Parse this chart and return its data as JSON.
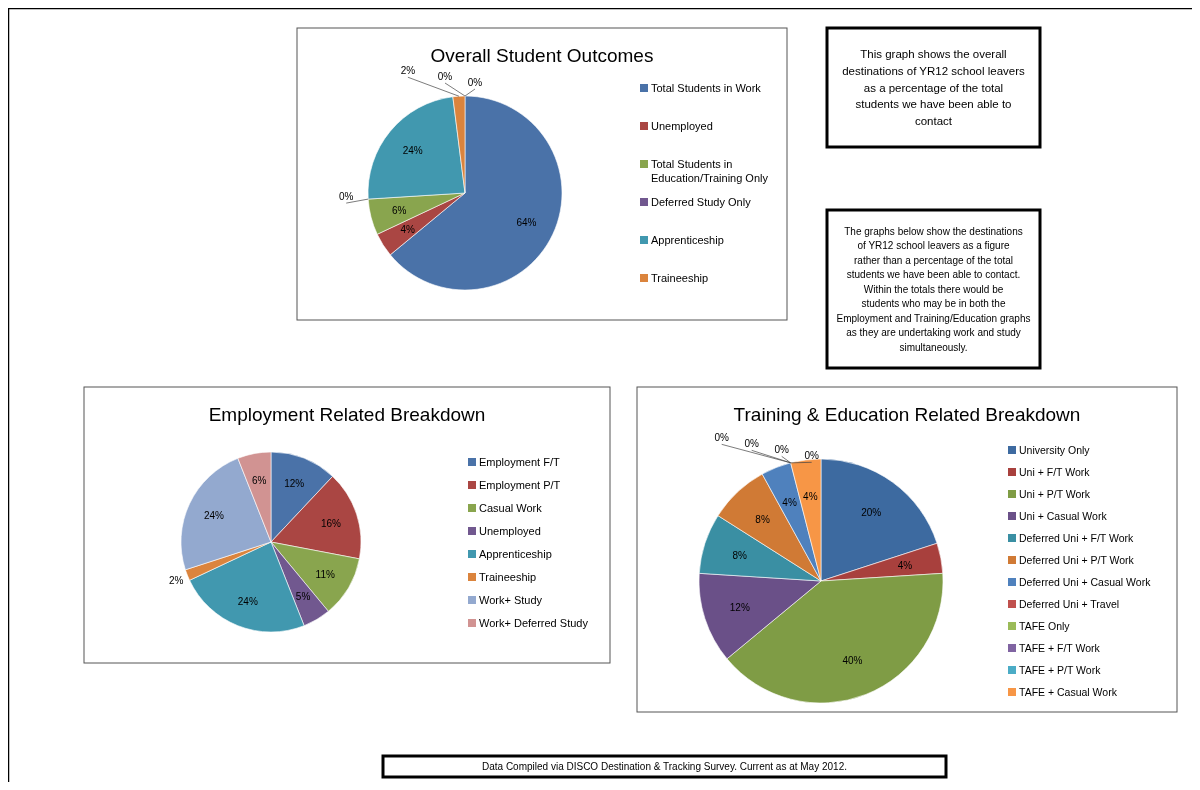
{
  "chart_data": [
    {
      "type": "pie",
      "title": "Overall Student Outcomes",
      "categories": [
        "Total Students in Work",
        "Unemployed",
        "Total Students in Education/Training Only",
        "Deferred Study Only",
        "Apprenticeship",
        "Traineeship",
        null,
        null
      ],
      "values": [
        64,
        4,
        6,
        0,
        24,
        2,
        0,
        0
      ],
      "value_labels": [
        "64%",
        "4%",
        "6%",
        "0%",
        "24%",
        "2%",
        "0%",
        "0%"
      ],
      "colors": [
        "#4a72a8",
        "#aa4643",
        "#89a54e",
        "#71588f",
        "#4198af",
        "#db843d",
        null,
        null
      ],
      "legend": "right",
      "annotations": [
        "This graph shows the overall destinations of YR12 school leavers as a percentage of the total students we have been able to contact",
        "The graphs below show the destinations of YR12 school leavers as a figure rather than a percentage of the total students we have been able to contact. Within the totals there would be students who may be in both the Employment and Training/Education graphs as they are undertaking work and study simultaneously.",
        "Data Compiled via DISCO Destination & Tracking Survey.  Current as at May 2012."
      ]
    },
    {
      "type": "pie",
      "title": "Employment Related Breakdown",
      "categories": [
        "Employment  F/T",
        "Employment  P/T",
        "Casual Work",
        "Unemployed",
        "Apprenticeship",
        "Traineeship",
        "Work+ Study",
        "Work+ Deferred Study"
      ],
      "values": [
        12,
        16,
        11,
        5,
        24,
        2,
        24,
        6
      ],
      "value_labels": [
        "12%",
        "16%",
        "11%",
        "5%",
        "24%",
        "2%",
        "24%",
        "6%"
      ],
      "colors": [
        "#4a72a8",
        "#aa4643",
        "#89a54e",
        "#71588f",
        "#4198af",
        "#db843d",
        "#93a9cf",
        "#d19392"
      ],
      "legend": "right"
    },
    {
      "type": "pie",
      "title": "Training & Education Related Breakdown",
      "categories": [
        "University  Only",
        "Uni + F/T Work",
        "Uni + P/T Work",
        "Uni + Casual Work",
        "Deferred Uni + F/T Work",
        "Deferred Uni + P/T Work",
        "Deferred Uni + Casual Work",
        "Deferred Uni + Travel",
        "TAFE Only",
        "TAFE + F/T Work",
        "TAFE + P/T Work",
        "TAFE + Casual Work"
      ],
      "values": [
        20,
        4,
        40,
        12,
        8,
        8,
        4,
        0,
        0,
        0,
        0,
        4
      ],
      "value_labels": [
        "20%",
        "4%",
        "40%",
        "12%",
        "8%",
        "8%",
        "4%",
        "0%",
        "0%",
        "0%",
        "0%",
        "4%"
      ],
      "colors": [
        "#3d6aa0",
        "#a8403d",
        "#7f9c45",
        "#6a5088",
        "#3a8fa3",
        "#d07a35",
        "#4f81bd",
        "#c0504d",
        "#9bbb59",
        "#8064a2",
        "#4bacc6",
        "#f79646"
      ],
      "legend": "right"
    }
  ]
}
